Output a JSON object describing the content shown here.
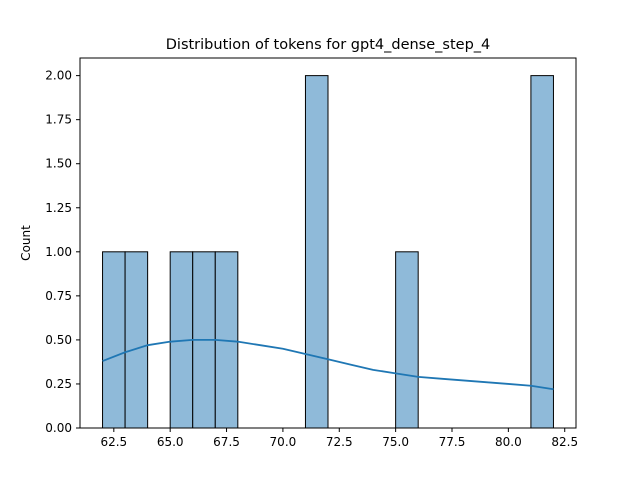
{
  "chart_data": {
    "type": "bar",
    "title": "Distribution of tokens for gpt4_dense_step_4",
    "xlabel": "",
    "ylabel": "Count",
    "xlim": [
      61.0,
      83.0
    ],
    "ylim": [
      0,
      2.1
    ],
    "bin_width": 1.0,
    "x_ticks": [
      62.5,
      65.0,
      67.5,
      70.0,
      72.5,
      75.0,
      77.5,
      80.0,
      82.5
    ],
    "x_tick_labels": [
      "62.5",
      "65.0",
      "67.5",
      "70.0",
      "72.5",
      "75.0",
      "77.5",
      "80.0",
      "82.5"
    ],
    "y_ticks": [
      0.0,
      0.25,
      0.5,
      0.75,
      1.0,
      1.25,
      1.5,
      1.75,
      2.0
    ],
    "y_tick_labels": [
      "0.00",
      "0.25",
      "0.50",
      "0.75",
      "1.00",
      "1.25",
      "1.50",
      "1.75",
      "2.00"
    ],
    "bins": [
      {
        "x0": 62,
        "x1": 63,
        "count": 1
      },
      {
        "x0": 63,
        "x1": 64,
        "count": 1
      },
      {
        "x0": 65,
        "x1": 66,
        "count": 1
      },
      {
        "x0": 66,
        "x1": 67,
        "count": 1
      },
      {
        "x0": 67,
        "x1": 68,
        "count": 1
      },
      {
        "x0": 71,
        "x1": 72,
        "count": 2
      },
      {
        "x0": 75,
        "x1": 76,
        "count": 1
      },
      {
        "x0": 81,
        "x1": 82,
        "count": 2
      }
    ],
    "kde": {
      "x": [
        62,
        63,
        64,
        65,
        66,
        67,
        68,
        69,
        70,
        71,
        72,
        73,
        74,
        75,
        76,
        77,
        78,
        79,
        80,
        81,
        82
      ],
      "y": [
        0.38,
        0.43,
        0.47,
        0.49,
        0.5,
        0.5,
        0.49,
        0.47,
        0.45,
        0.42,
        0.39,
        0.36,
        0.33,
        0.31,
        0.29,
        0.28,
        0.27,
        0.26,
        0.25,
        0.24,
        0.22
      ]
    },
    "grid": false,
    "colors": {
      "bar_fill": "#8fbad9",
      "bar_edge": "#000000",
      "kde_line": "#1f77b4"
    }
  }
}
